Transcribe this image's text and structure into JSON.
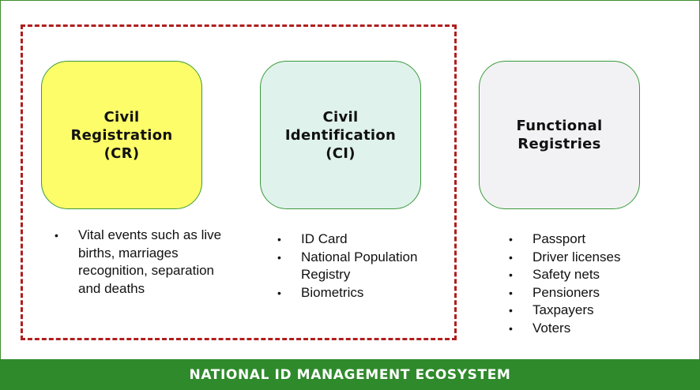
{
  "boxes": {
    "cr": {
      "lines": [
        "Civil",
        "Registration",
        "(CR)"
      ],
      "color": "#fdfd6a"
    },
    "ci": {
      "lines": [
        "Civil",
        "Identification",
        "(CI)"
      ],
      "color": "#dff2ec"
    },
    "fr": {
      "lines": [
        "Functional",
        "Registries"
      ],
      "color": "#f2f2f4"
    }
  },
  "lists": {
    "cr": [
      "Vital events such as live births, marriages recognition, separation and deaths"
    ],
    "ci": [
      "ID Card",
      "National Population Registry",
      "Biometrics"
    ],
    "fr": [
      "Passport",
      "Driver licenses",
      "Safety nets",
      "Pensioners",
      "Taxpayers",
      "Voters"
    ]
  },
  "footer": {
    "title": "NATIONAL ID MANAGEMENT ECOSYSTEM",
    "color": "#2f8a2c"
  },
  "group_border_color": "#b01e1e"
}
